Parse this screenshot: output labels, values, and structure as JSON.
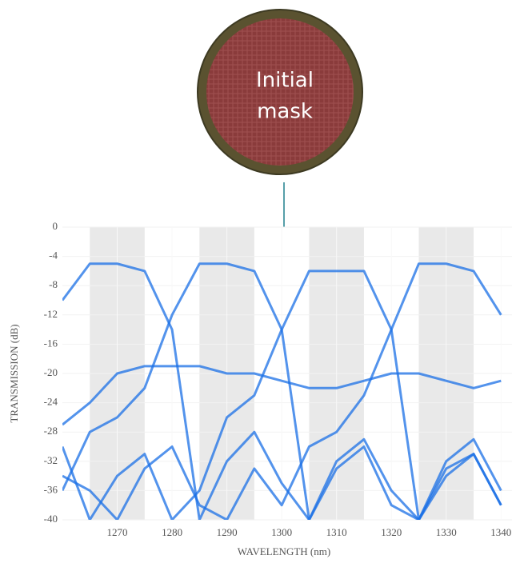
{
  "mask": {
    "lines": [
      "Initial",
      "mask"
    ]
  },
  "chart_data": {
    "type": "line",
    "ylabel": "TRANSMISSION (dB)",
    "xlabel": "WAVELENGTH (nm)",
    "xlim": [
      1260,
      1342
    ],
    "ylim": [
      -40,
      0
    ],
    "xticks": [
      1270,
      1280,
      1290,
      1300,
      1310,
      1320,
      1330,
      1340
    ],
    "yticks": [
      0,
      -4,
      -8,
      -12,
      -16,
      -20,
      -24,
      -28,
      -32,
      -36,
      -40
    ],
    "grid": true,
    "bands": [
      [
        1265,
        1275
      ],
      [
        1285,
        1295
      ],
      [
        1305,
        1315
      ],
      [
        1325,
        1335
      ]
    ],
    "x": [
      1260,
      1265,
      1270,
      1275,
      1280,
      1285,
      1290,
      1295,
      1300,
      1305,
      1310,
      1315,
      1320,
      1325,
      1330,
      1335,
      1340
    ],
    "series": [
      {
        "color": "#1a6fe6",
        "values": [
          -10,
          -5,
          -5,
          -6,
          -14,
          -40,
          -32,
          -28,
          -35,
          -40,
          -33,
          -30,
          -38,
          -40,
          -34,
          -31,
          -38
        ]
      },
      {
        "color": "#1a6fe6",
        "values": [
          -36,
          -28,
          -26,
          -22,
          -12,
          -5,
          -5,
          -6,
          -14,
          -40,
          -32,
          -29,
          -36,
          -40,
          -33,
          -31,
          -38
        ]
      },
      {
        "color": "#1a6fe6",
        "values": [
          -30,
          -40,
          -34,
          -31,
          -40,
          -36,
          -26,
          -23,
          -14,
          -6,
          -6,
          -6,
          -14,
          -40,
          -32,
          -29,
          -36
        ]
      },
      {
        "color": "#1a6fe6",
        "values": [
          -34,
          -36,
          -40,
          -33,
          -30,
          -38,
          -40,
          -33,
          -38,
          -30,
          -28,
          -23,
          -14,
          -5,
          -5,
          -6,
          -12
        ]
      },
      {
        "color": "#1a6fe6",
        "values": [
          -27,
          -24,
          -20,
          -19,
          -19,
          -19,
          -20,
          -20,
          -21,
          -22,
          -22,
          -21,
          -20,
          -20,
          -21,
          -22,
          -21
        ]
      }
    ]
  }
}
